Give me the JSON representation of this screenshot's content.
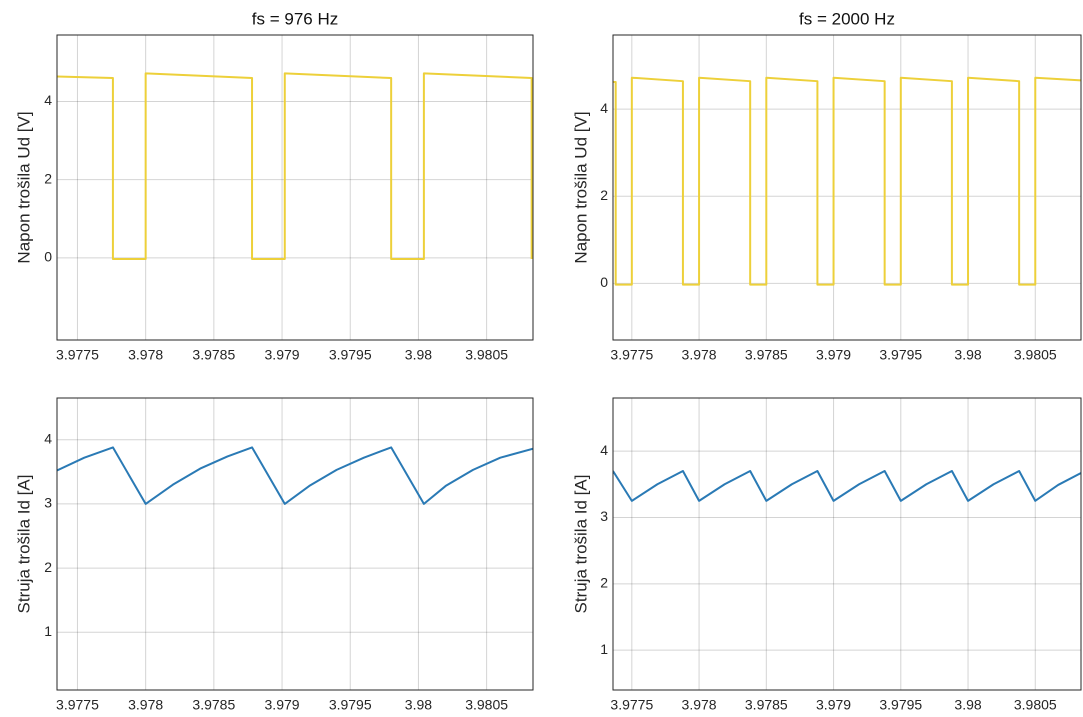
{
  "chart_data": [
    {
      "type": "line",
      "title": "fs = 976 Hz",
      "ylabel": "Napon trošila Ud [V]",
      "color": "#edd03a",
      "grid": true,
      "x": [
        3.97735,
        3.97776,
        3.97776,
        3.978,
        3.978,
        3.97878,
        3.97878,
        3.97902,
        3.97902,
        3.9798,
        3.9798,
        3.98004,
        3.98004,
        3.98083,
        3.98083
      ],
      "values": [
        4.64,
        4.6,
        -0.03,
        -0.03,
        4.72,
        4.6,
        -0.03,
        -0.03,
        4.72,
        4.6,
        -0.03,
        -0.03,
        4.72,
        4.6,
        -0.03
      ],
      "xlim": [
        3.97735,
        3.98084
      ],
      "xticks": [
        3.9775,
        3.978,
        3.9785,
        3.979,
        3.9795,
        3.98,
        3.9805
      ],
      "ylim": [
        -2.1,
        5.7
      ],
      "yticks": [
        0,
        2,
        4
      ]
    },
    {
      "type": "line",
      "title": "fs = 2000 Hz",
      "ylabel": "Napon trošila Ud [V]",
      "color": "#edd03a",
      "grid": true,
      "x": [
        3.97736,
        3.97738,
        3.97738,
        3.9775,
        3.9775,
        3.97788,
        3.97788,
        3.978,
        3.978,
        3.97838,
        3.97838,
        3.9785,
        3.9785,
        3.97888,
        3.97888,
        3.979,
        3.979,
        3.97938,
        3.97938,
        3.9795,
        3.9795,
        3.97988,
        3.97988,
        3.98,
        3.98,
        3.98038,
        3.98038,
        3.9805,
        3.9805,
        3.98084
      ],
      "values": [
        4.62,
        4.62,
        -0.03,
        -0.03,
        4.72,
        4.64,
        -0.03,
        -0.03,
        4.72,
        4.64,
        -0.03,
        -0.03,
        4.72,
        4.64,
        -0.03,
        -0.03,
        4.72,
        4.64,
        -0.03,
        -0.03,
        4.72,
        4.64,
        -0.03,
        -0.03,
        4.72,
        4.64,
        -0.03,
        -0.03,
        4.72,
        4.66
      ],
      "xlim": [
        3.97736,
        3.98084
      ],
      "xticks": [
        3.9775,
        3.978,
        3.9785,
        3.979,
        3.9795,
        3.98,
        3.9805
      ],
      "ylim": [
        -1.3,
        5.7
      ],
      "yticks": [
        0,
        2,
        4
      ]
    },
    {
      "type": "line",
      "ylabel": "Struja trošila Id [A]",
      "color": "#2a7ab5",
      "grid": true,
      "x": [
        3.97735,
        3.97755,
        3.97776,
        3.978,
        3.9782,
        3.9784,
        3.9786,
        3.97878,
        3.97902,
        3.9792,
        3.9794,
        3.9796,
        3.9798,
        3.98004,
        3.9802,
        3.9804,
        3.9806,
        3.98084
      ],
      "values": [
        3.52,
        3.72,
        3.88,
        3.0,
        3.3,
        3.55,
        3.74,
        3.88,
        3.0,
        3.28,
        3.53,
        3.72,
        3.88,
        3.0,
        3.28,
        3.53,
        3.72,
        3.86
      ],
      "xlim": [
        3.97735,
        3.98084
      ],
      "xticks": [
        3.9775,
        3.978,
        3.9785,
        3.979,
        3.9795,
        3.98,
        3.9805
      ],
      "ylim": [
        0.1,
        4.65
      ],
      "yticks": [
        1,
        2,
        3,
        4
      ]
    },
    {
      "type": "line",
      "ylabel": "Struja trošila Id [A]",
      "color": "#2a7ab5",
      "grid": true,
      "x": [
        3.97736,
        3.9775,
        3.97769,
        3.97788,
        3.978,
        3.97819,
        3.97838,
        3.9785,
        3.97869,
        3.97888,
        3.979,
        3.97919,
        3.97938,
        3.9795,
        3.97969,
        3.97988,
        3.98,
        3.98019,
        3.98038,
        3.9805,
        3.98067,
        3.98084
      ],
      "values": [
        3.7,
        3.25,
        3.5,
        3.7,
        3.25,
        3.5,
        3.7,
        3.25,
        3.5,
        3.7,
        3.25,
        3.5,
        3.7,
        3.25,
        3.5,
        3.7,
        3.25,
        3.5,
        3.7,
        3.25,
        3.49,
        3.67
      ],
      "xlim": [
        3.97736,
        3.98084
      ],
      "xticks": [
        3.9775,
        3.978,
        3.9785,
        3.979,
        3.9795,
        3.98,
        3.9805
      ],
      "ylim": [
        0.4,
        4.8
      ],
      "yticks": [
        1,
        2,
        3,
        4
      ]
    }
  ]
}
